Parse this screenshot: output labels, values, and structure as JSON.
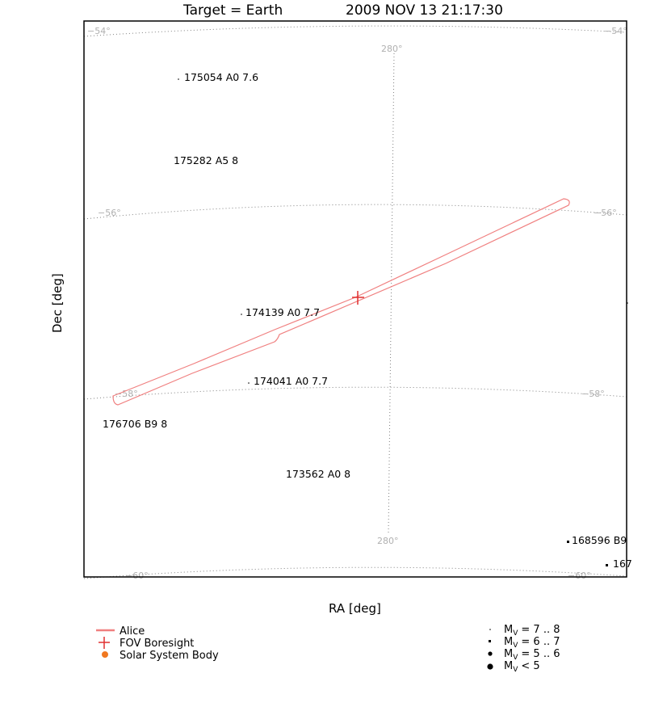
{
  "chart_data": {
    "type": "scatter",
    "title_target": "Target = Earth",
    "title_time": "2009 NOV 13 21:17:30",
    "xlabel": "RA [deg]",
    "ylabel": "Dec [deg]",
    "dec_grid": [
      {
        "dec": -54,
        "label": "−54°"
      },
      {
        "dec": -56,
        "label": "−56°"
      },
      {
        "dec": -58,
        "label": "−58°"
      },
      {
        "dec": -60,
        "label": "−60°"
      }
    ],
    "ra_grid": [
      {
        "ra": 280,
        "label": "280°"
      }
    ],
    "stars": [
      {
        "label": "175054 A0 7.6",
        "mag": 7.6
      },
      {
        "label": "175282 A5 8",
        "mag": 8
      },
      {
        "label": "174139 A0 7.7",
        "mag": 7.7
      },
      {
        "label": "174041 A0 7.7",
        "mag": 7.7
      },
      {
        "label": "176706 B9 8",
        "mag": 8
      },
      {
        "label": "173562 A0 8",
        "mag": 8
      },
      {
        "label": "168596 B9",
        "mag": 6.5
      },
      {
        "label": "167",
        "mag": 6.5
      }
    ],
    "colors": {
      "fov": "#f08080",
      "boresight": "#e03030",
      "solar_body": "#f07820",
      "grid": "#808080"
    },
    "legend": {
      "items": [
        {
          "label": "Alice",
          "symbol": "line"
        },
        {
          "label": "FOV Boresight",
          "symbol": "cross"
        },
        {
          "label": "Solar System Body",
          "symbol": "dot"
        }
      ],
      "magnitudes": [
        {
          "prefix": "M",
          "sub": "V",
          "range": "= 7 .. 8"
        },
        {
          "prefix": "M",
          "sub": "V",
          "range": "= 6 .. 7"
        },
        {
          "prefix": "M",
          "sub": "V",
          "range": "= 5 .. 6"
        },
        {
          "prefix": "M",
          "sub": "V",
          "range": "< 5"
        }
      ]
    }
  }
}
